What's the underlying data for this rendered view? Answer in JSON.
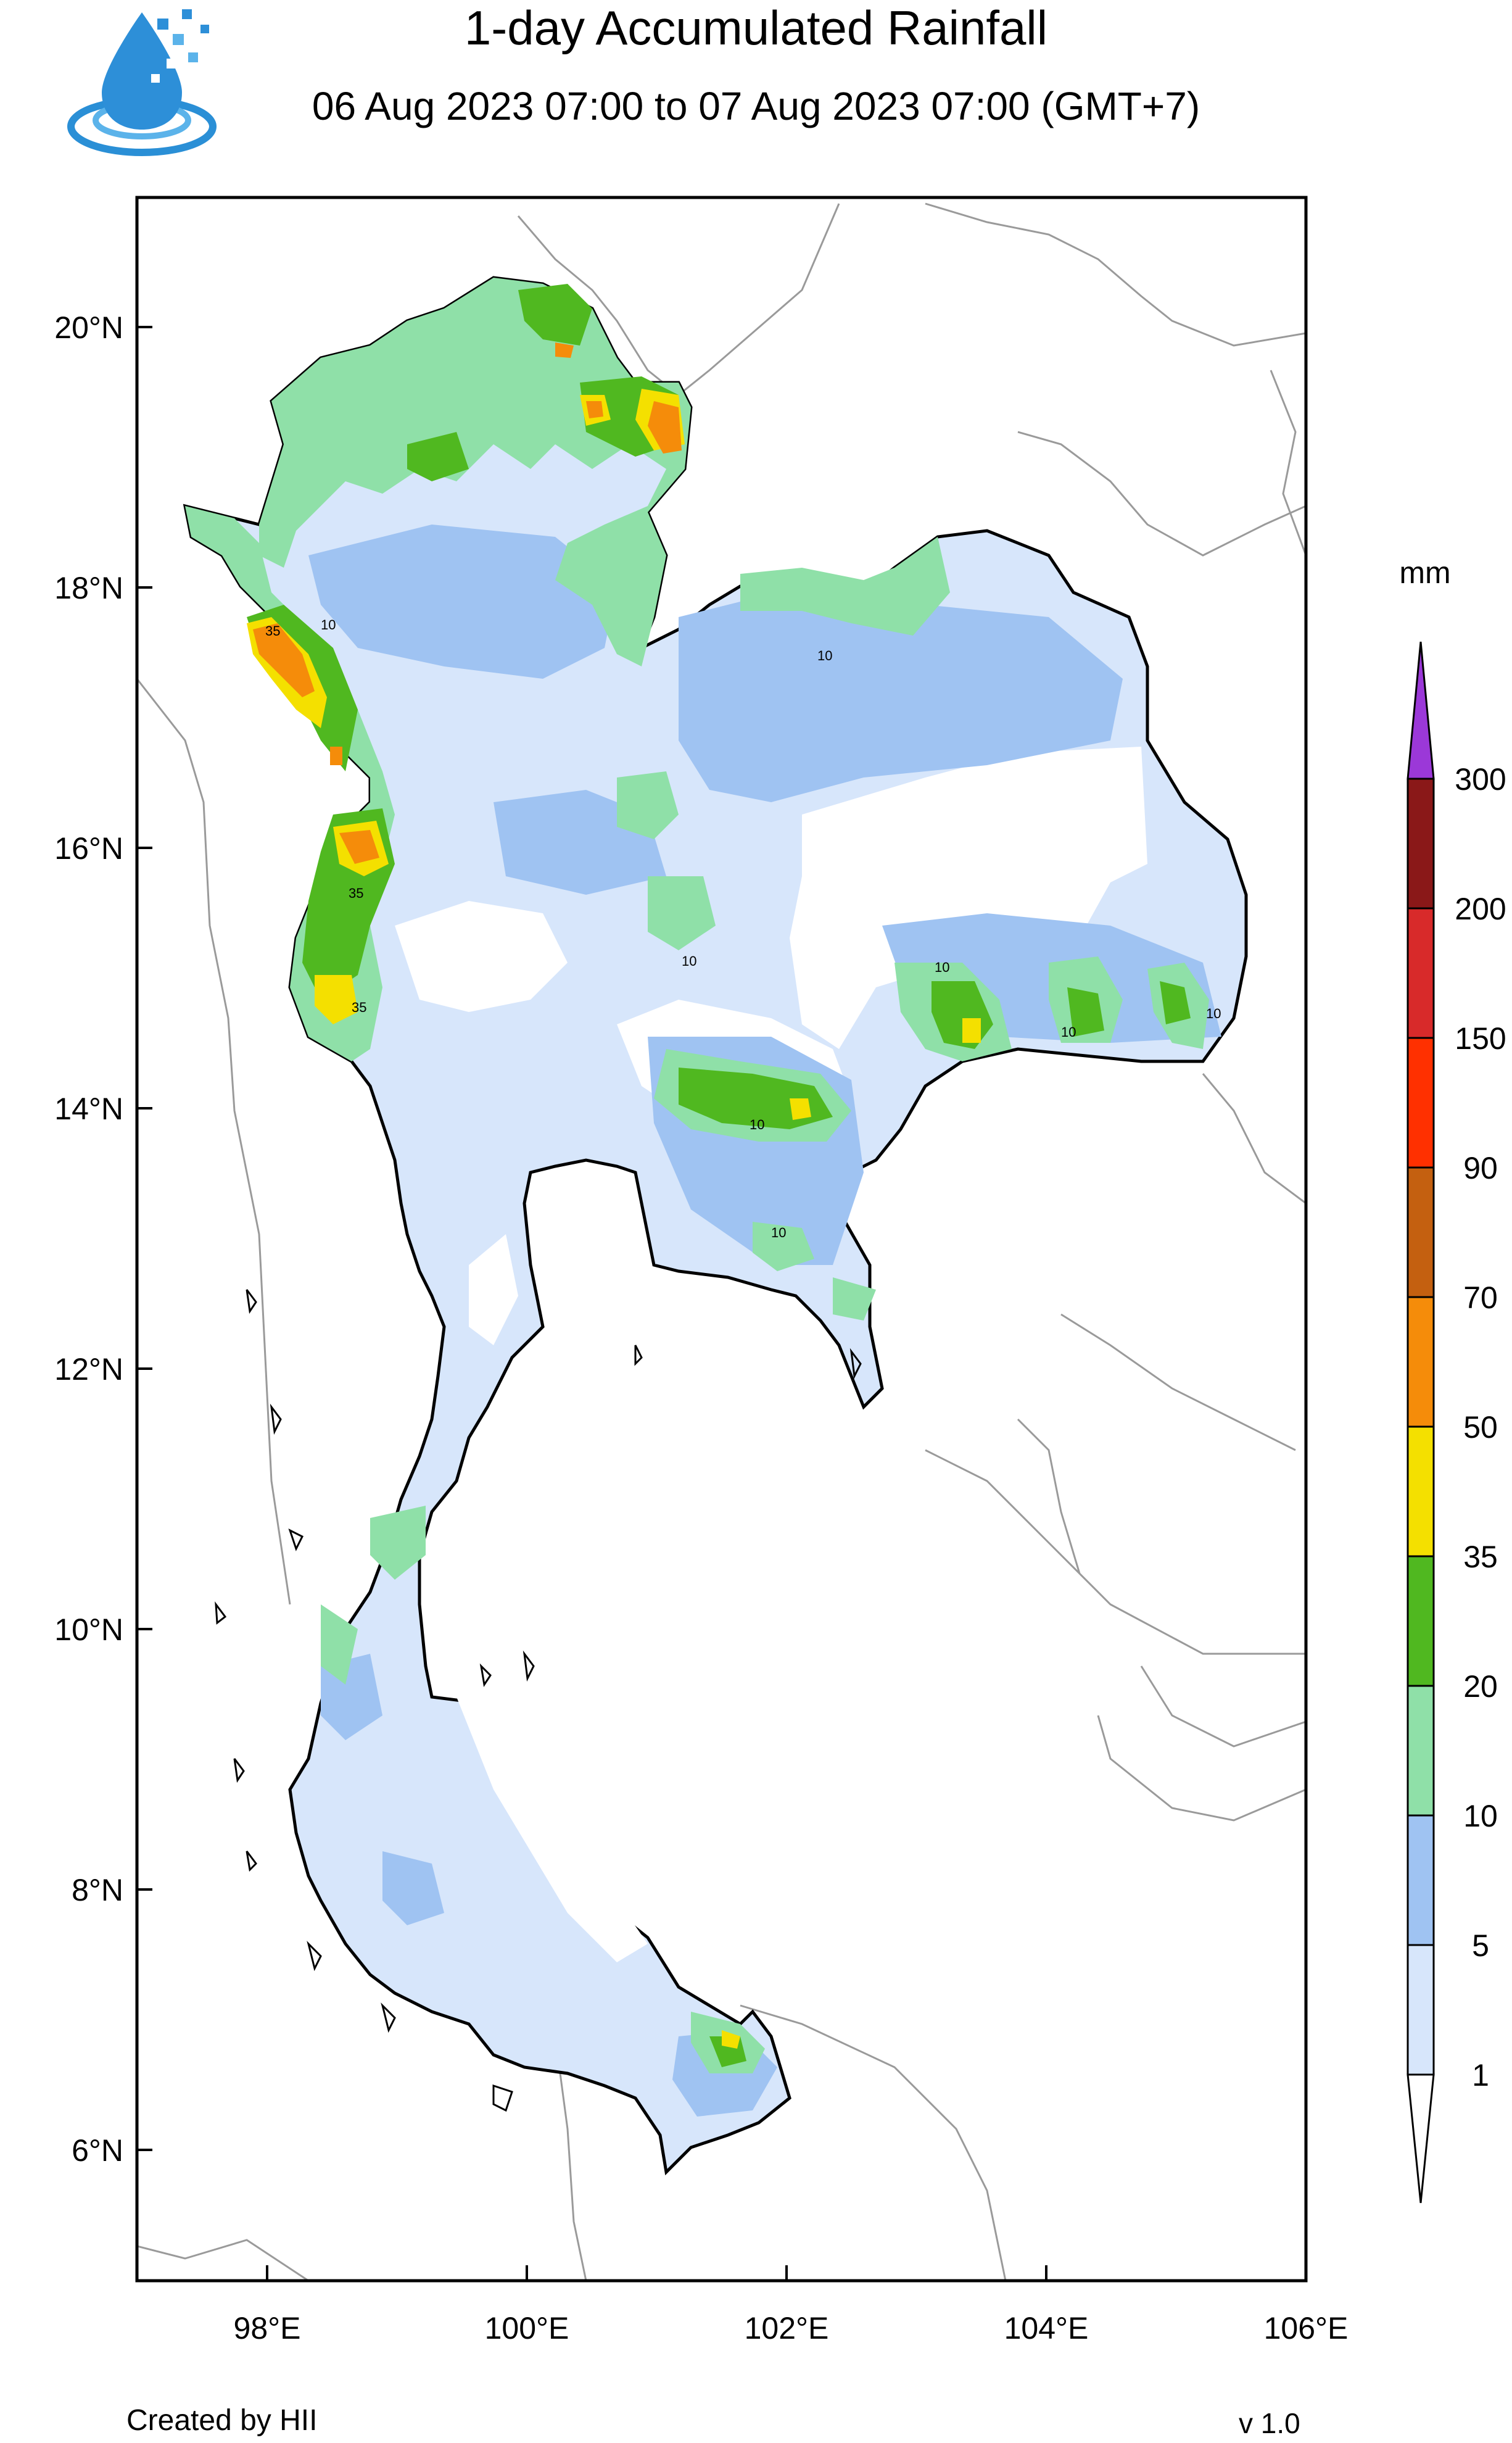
{
  "header": {
    "title": "1-day Accumulated Rainfall",
    "subtitle": "06 Aug 2023 07:00 to 07 Aug 2023 07:00 (GMT+7)"
  },
  "map": {
    "lat_labels": [
      "20°N",
      "18°N",
      "16°N",
      "14°N",
      "12°N",
      "10°N",
      "8°N",
      "6°N"
    ],
    "lon_labels": [
      "98°E",
      "100°E",
      "102°E",
      "104°E",
      "106°E"
    ],
    "contour_labels": [
      "10",
      "10",
      "10",
      "10",
      "35",
      "35",
      "35",
      "10",
      "10",
      "10",
      "10"
    ]
  },
  "legend": {
    "unit": "mm",
    "levels": [
      "1",
      "5",
      "10",
      "20",
      "35",
      "50",
      "70",
      "90",
      "150",
      "200",
      "300"
    ],
    "colors": [
      "#ffffff",
      "#d7e6fb",
      "#9fc3f2",
      "#8fe0a8",
      "#50b820",
      "#f4e000",
      "#f58c0a",
      "#c46010",
      "#ff3000",
      "#d82a2a",
      "#8a1818",
      "#9b38d8"
    ]
  },
  "footer": {
    "credit": "Created by HII",
    "version": "v 1.0"
  }
}
